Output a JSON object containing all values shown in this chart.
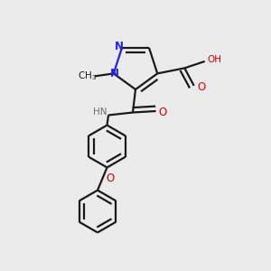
{
  "bg_color": "#ebebeb",
  "bond_color": "#1a1a1a",
  "N_color": "#2020ff",
  "O_color": "#dd0000",
  "H_color": "#707070",
  "lw": 1.6,
  "dbo": 0.018,
  "figsize": [
    3.0,
    3.0
  ],
  "dpi": 100,
  "xlim": [
    0,
    1
  ],
  "ylim": [
    0,
    1
  ]
}
